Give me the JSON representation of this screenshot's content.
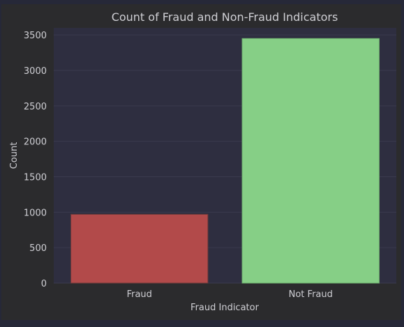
{
  "chart_data": {
    "type": "bar",
    "title": "Count of Fraud and Non-Fraud Indicators",
    "xlabel": "Fraud Indicator",
    "ylabel": "Count",
    "categories": [
      "Fraud",
      "Not Fraud"
    ],
    "values": [
      970,
      3450
    ],
    "ylim": [
      0,
      3600
    ],
    "yticks": [
      0,
      500,
      1000,
      1500,
      2000,
      2500,
      3000,
      3500
    ],
    "grid": true,
    "legend": "none",
    "colors": {
      "page_background": "#262838",
      "figure_background": "#2b2b2d",
      "plot_background": "#2e2e40",
      "grid": "#3a3a4e",
      "text": "#cfcfd4",
      "bars": [
        "#b24a4a",
        "#86cf86"
      ],
      "bar_edge": "#6e3a3a"
    }
  }
}
